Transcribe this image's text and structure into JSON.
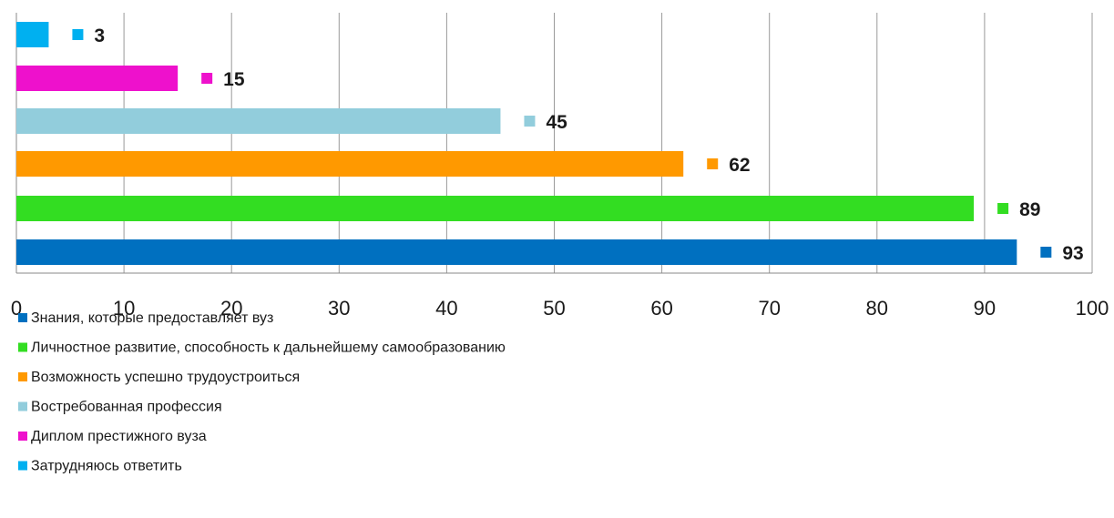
{
  "chart_data": {
    "type": "bar",
    "orientation": "horizontal",
    "xlim": [
      0,
      100
    ],
    "xticks": [
      0,
      10,
      20,
      30,
      40,
      50,
      60,
      70,
      80,
      90,
      100
    ],
    "grid": "vertical",
    "legend_position": "bottom-left",
    "series": [
      {
        "name": "Знания, которые предоставляет вуз",
        "value": 93,
        "color": "#0070c0"
      },
      {
        "name": "Личностное развитие, способность к дальнейшему самообразованию",
        "value": 89,
        "color": "#33dd22"
      },
      {
        "name": "Возможность успешно трудоустроиться",
        "value": 62,
        "color": "#ff9900"
      },
      {
        "name": "Востребованная профессия",
        "value": 45,
        "color": "#92cddc"
      },
      {
        "name": "Диплом престижного вуза",
        "value": 15,
        "color": "#ee11cc"
      },
      {
        "name": "Затрудняюсь ответить",
        "value": 3,
        "color": "#00b0f0"
      }
    ]
  }
}
